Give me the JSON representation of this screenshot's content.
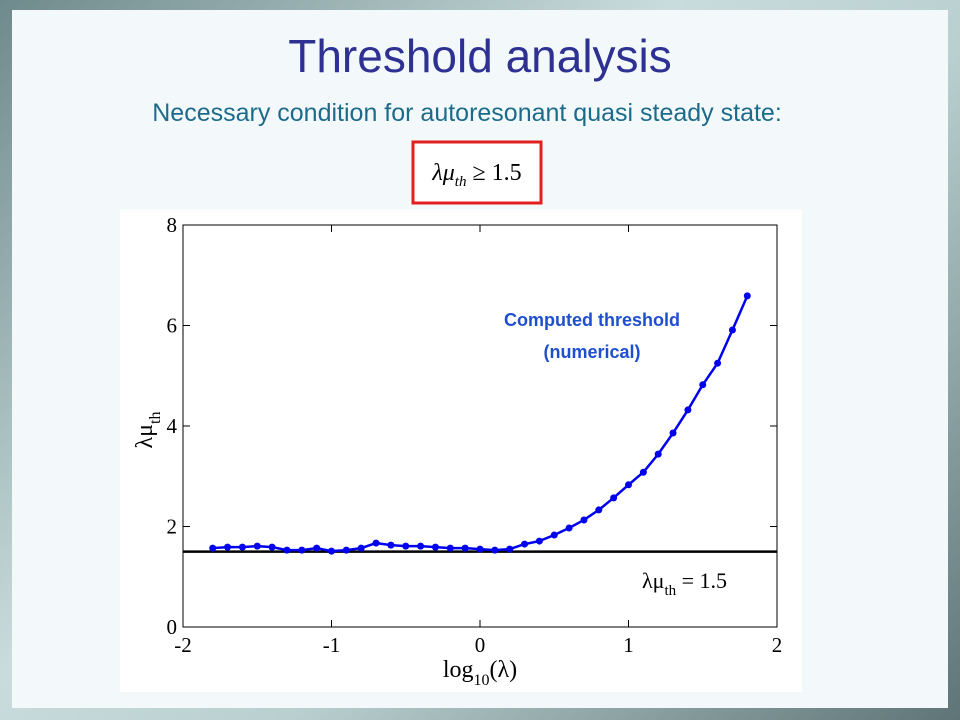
{
  "slide": {
    "title": "Threshold analysis",
    "subtitle": "Necessary condition for autoresonant quasi steady state:",
    "formula": [
      "λμ",
      "th",
      " ≥ 1.5"
    ]
  },
  "chart_data": {
    "type": "line",
    "x": [
      -1.8,
      -1.7,
      -1.6,
      -1.5,
      -1.4,
      -1.3,
      -1.2,
      -1.1,
      -1.0,
      -0.9,
      -0.8,
      -0.7,
      -0.6,
      -0.5,
      -0.4,
      -0.3,
      -0.2,
      -0.1,
      0.0,
      0.1,
      0.2,
      0.3,
      0.4,
      0.5,
      0.6,
      0.7,
      0.8,
      0.9,
      1.0,
      1.1,
      1.2,
      1.3,
      1.4,
      1.5,
      1.6,
      1.7,
      1.8
    ],
    "series": [
      {
        "name": "Computed threshold (numerical)",
        "color": "#0000ee",
        "values": [
          1.57,
          1.59,
          1.59,
          1.61,
          1.59,
          1.53,
          1.53,
          1.57,
          1.51,
          1.53,
          1.57,
          1.67,
          1.63,
          1.61,
          1.61,
          1.59,
          1.57,
          1.57,
          1.55,
          1.53,
          1.55,
          1.65,
          1.71,
          1.83,
          1.97,
          2.13,
          2.33,
          2.57,
          2.83,
          3.08,
          3.44,
          3.86,
          4.32,
          4.82,
          5.25,
          5.91,
          6.59
        ]
      }
    ],
    "threshold": 1.5,
    "xlim": [
      -2,
      2
    ],
    "xticks": [
      -2,
      -1,
      0,
      1,
      2
    ],
    "ylim": [
      0,
      8
    ],
    "yticks": [
      0,
      2,
      4,
      6,
      8
    ],
    "xlabel": [
      "log",
      "10",
      "(λ)"
    ],
    "ylabel": [
      "λμ",
      "th"
    ],
    "annotations": {
      "series_label": [
        "Computed threshold",
        "(numerical)"
      ],
      "threshold_label": [
        "λμ",
        "th",
        " = 1.5"
      ]
    }
  }
}
